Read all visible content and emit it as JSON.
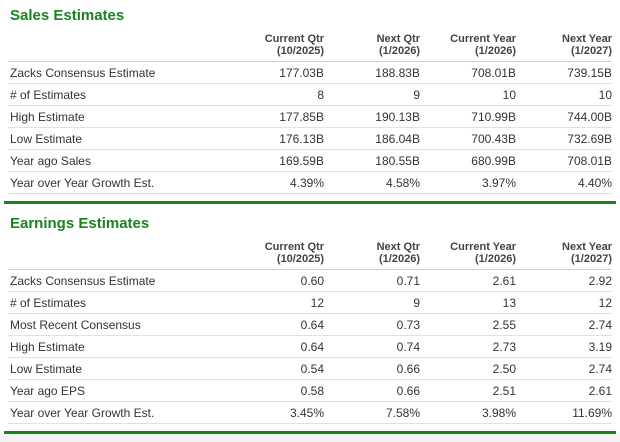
{
  "accent_color": "#1b8221",
  "chart_data": [
    {
      "type": "table",
      "title": "Sales Estimates",
      "column_headers": [
        {
          "line1": "Current Qtr",
          "line2": "(10/2025)"
        },
        {
          "line1": "Next Qtr",
          "line2": "(1/2026)"
        },
        {
          "line1": "Current Year",
          "line2": "(1/2026)"
        },
        {
          "line1": "Next Year",
          "line2": "(1/2027)"
        }
      ],
      "rows": [
        {
          "label": "Zacks Consensus Estimate",
          "values": [
            "177.03B",
            "188.83B",
            "708.01B",
            "739.15B"
          ]
        },
        {
          "label": "# of Estimates",
          "values": [
            "8",
            "9",
            "10",
            "10"
          ]
        },
        {
          "label": "High Estimate",
          "values": [
            "177.85B",
            "190.13B",
            "710.99B",
            "744.00B"
          ]
        },
        {
          "label": "Low Estimate",
          "values": [
            "176.13B",
            "186.04B",
            "700.43B",
            "732.69B"
          ]
        },
        {
          "label": "Year ago Sales",
          "values": [
            "169.59B",
            "180.55B",
            "680.99B",
            "708.01B"
          ]
        },
        {
          "label": "Year over Year Growth Est.",
          "values": [
            "4.39%",
            "4.58%",
            "3.97%",
            "4.40%"
          ]
        }
      ]
    },
    {
      "type": "table",
      "title": "Earnings Estimates",
      "column_headers": [
        {
          "line1": "Current Qtr",
          "line2": "(10/2025)"
        },
        {
          "line1": "Next Qtr",
          "line2": "(1/2026)"
        },
        {
          "line1": "Current Year",
          "line2": "(1/2026)"
        },
        {
          "line1": "Next Year",
          "line2": "(1/2027)"
        }
      ],
      "rows": [
        {
          "label": "Zacks Consensus Estimate",
          "values": [
            "0.60",
            "0.71",
            "2.61",
            "2.92"
          ]
        },
        {
          "label": "# of Estimates",
          "values": [
            "12",
            "9",
            "13",
            "12"
          ]
        },
        {
          "label": "Most Recent Consensus",
          "values": [
            "0.64",
            "0.73",
            "2.55",
            "2.74"
          ]
        },
        {
          "label": "High Estimate",
          "values": [
            "0.64",
            "0.74",
            "2.73",
            "3.19"
          ]
        },
        {
          "label": "Low Estimate",
          "values": [
            "0.54",
            "0.66",
            "2.50",
            "2.74"
          ]
        },
        {
          "label": "Year ago EPS",
          "values": [
            "0.58",
            "0.66",
            "2.51",
            "2.61"
          ]
        },
        {
          "label": "Year over Year Growth Est.",
          "values": [
            "3.45%",
            "7.58%",
            "3.98%",
            "11.69%"
          ]
        }
      ]
    }
  ]
}
